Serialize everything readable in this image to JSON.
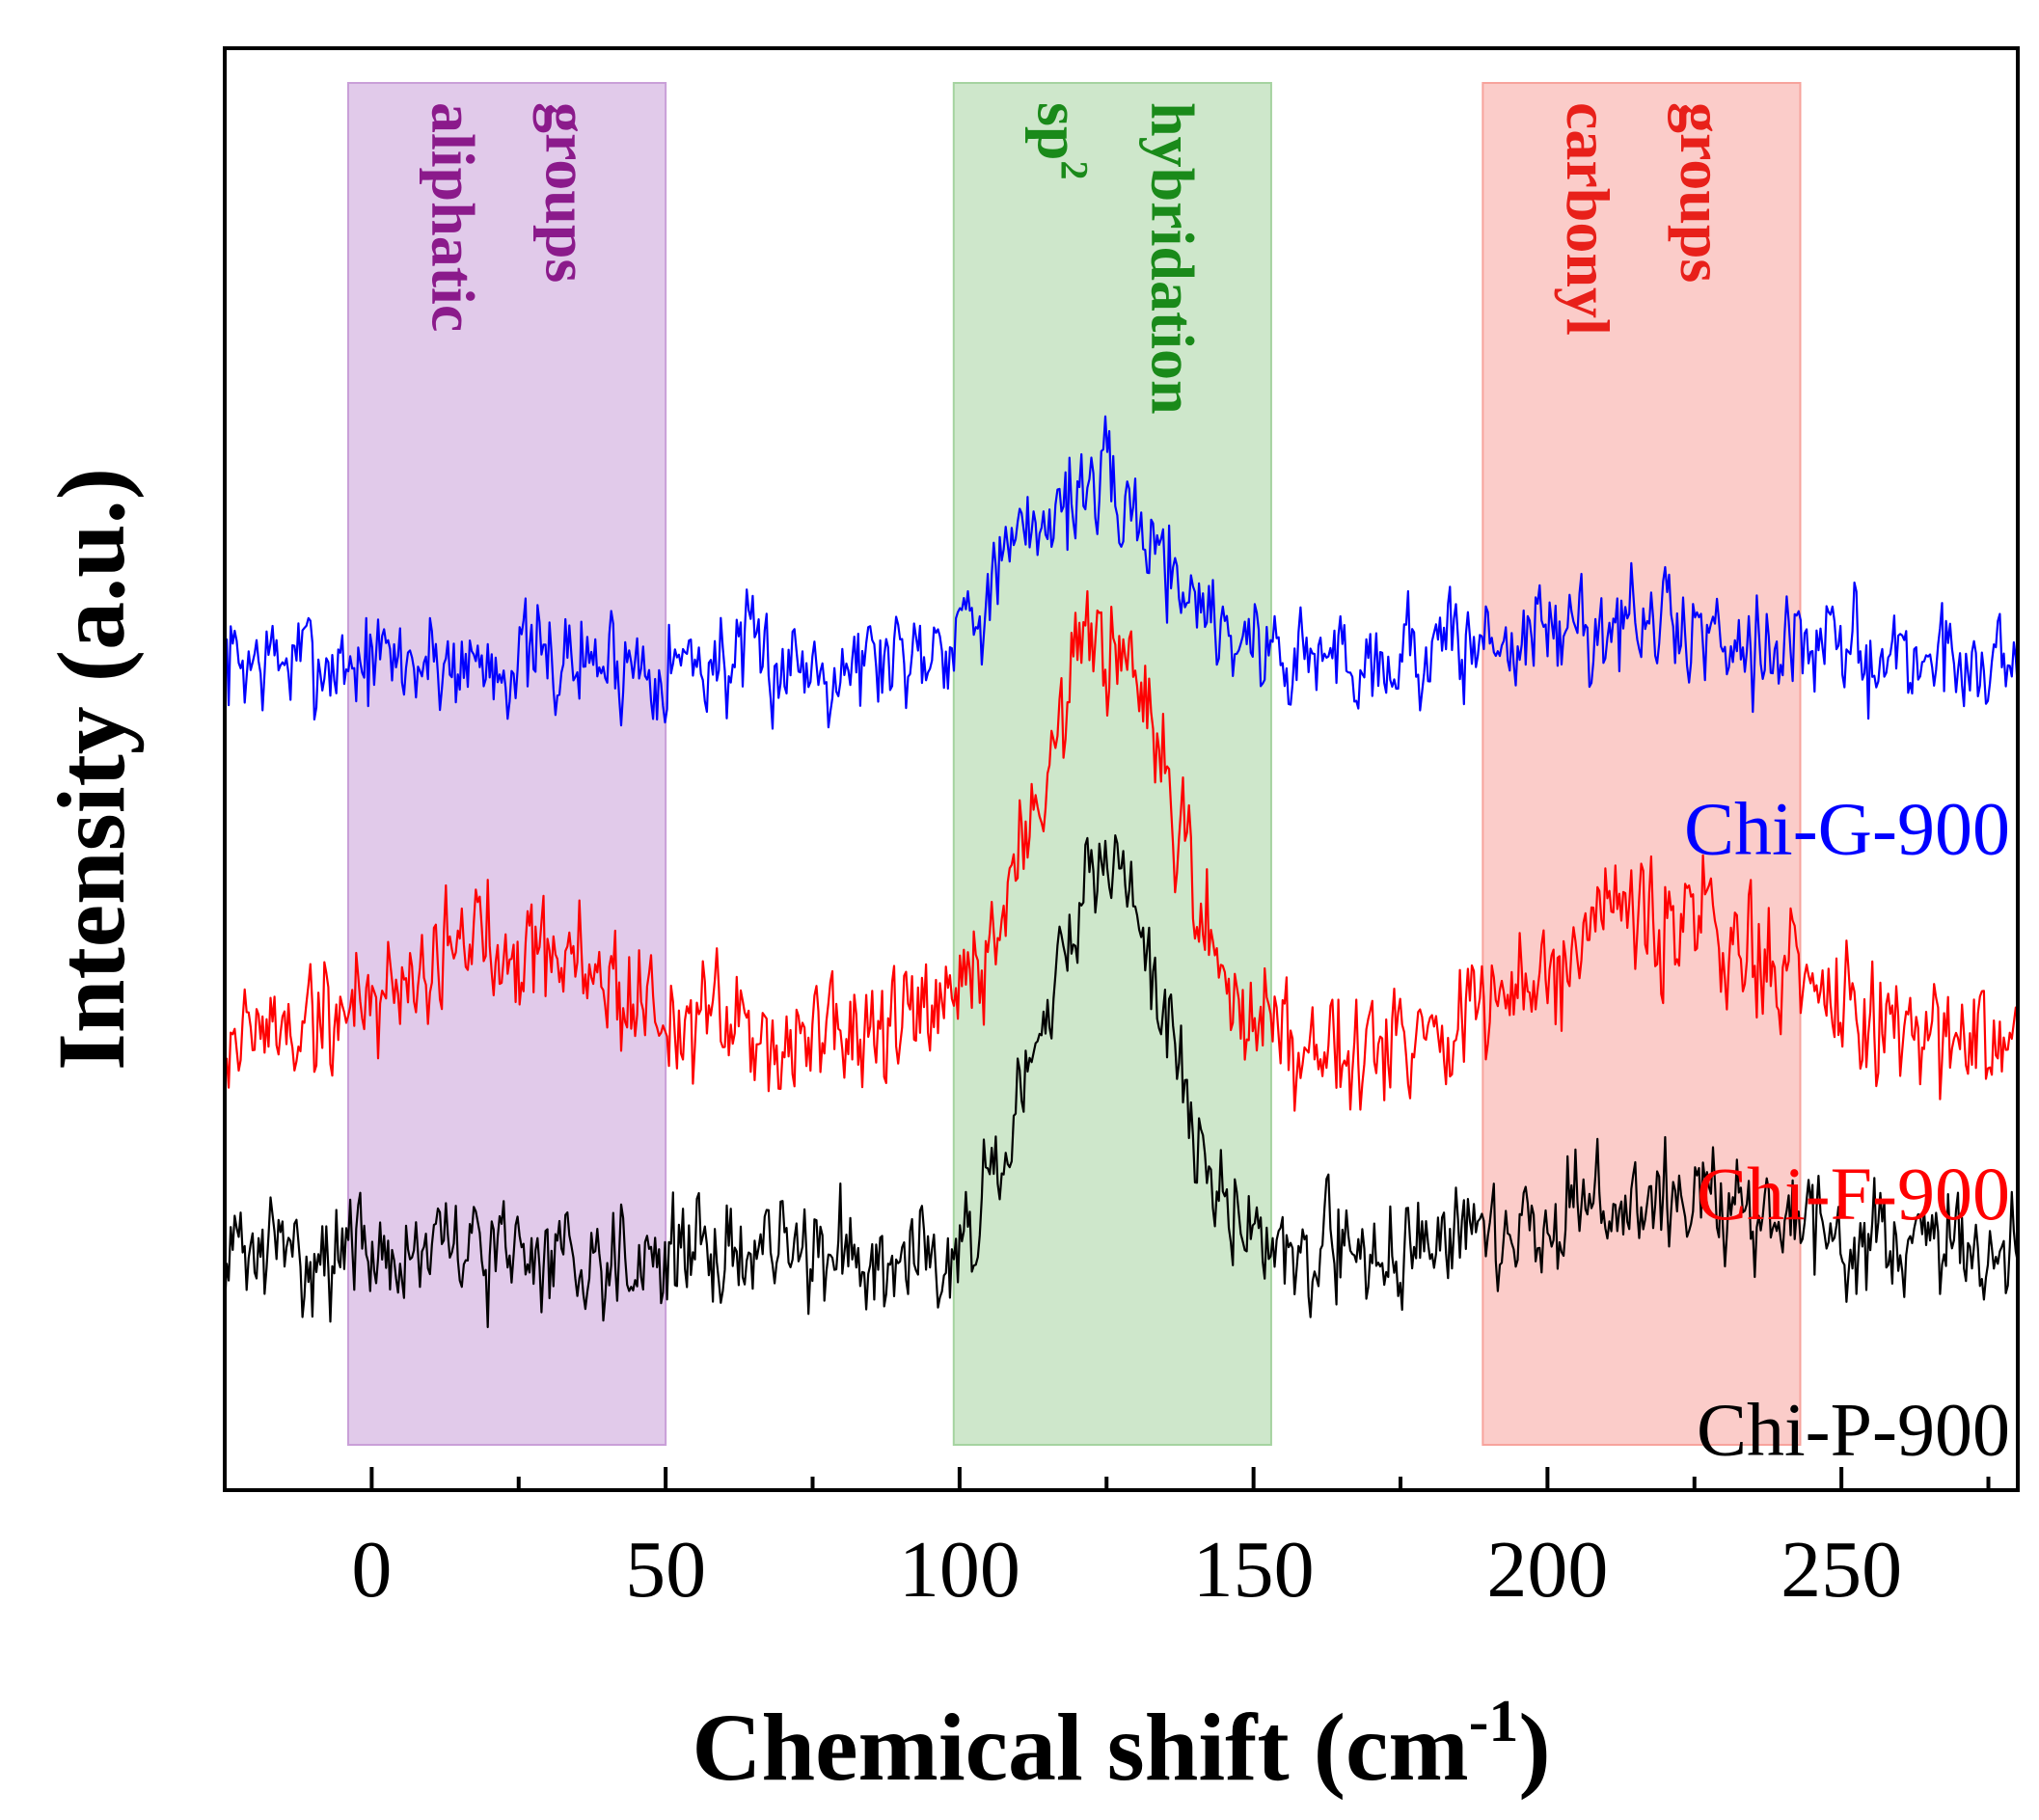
{
  "chart_data": {
    "type": "line",
    "title": "",
    "xlabel": "Chemical shift (cm",
    "xlabel_superscript": "-1",
    "xlabel_suffix": ")",
    "ylabel": "Intensity (a.u.)",
    "xlim": [
      -25,
      280
    ],
    "ylim": [
      0,
      1
    ],
    "x_ticks": [
      0,
      50,
      100,
      150,
      200,
      250
    ],
    "x_tick_labels": [
      "0",
      "50",
      "100",
      "150",
      "200",
      "250"
    ],
    "grid": false,
    "y_ticks_visible": false,
    "regions": [
      {
        "name": "aliphatic",
        "lines": [
          "aliphatic",
          "groups"
        ],
        "superscript": "",
        "x_start": -4,
        "x_end": 50,
        "color": "#c99fd8",
        "text_color": "#8b1a8b"
      },
      {
        "name": "sp2",
        "lines": [
          "sp",
          "hybridation"
        ],
        "superscript": "2",
        "x_start": 99,
        "x_end": 153,
        "color": "#a5d3a0",
        "text_color": "#1a8a1a"
      },
      {
        "name": "carbonyl",
        "lines": [
          "carbonyl",
          "groups"
        ],
        "superscript": "",
        "x_start": 189,
        "x_end": 243,
        "color": "#f7a39c",
        "text_color": "#e8201a"
      }
    ],
    "series": [
      {
        "name": "Chi-G-900",
        "color": "#0000ff",
        "baseline": 0.575,
        "noise": 0.022,
        "seed": 7,
        "peaks": [
          {
            "center": 122,
            "height": 0.12,
            "width": 13
          },
          {
            "center": 215,
            "height": 0.025,
            "width": 22
          }
        ]
      },
      {
        "name": "Chi-F-900",
        "color": "#ff0000",
        "baseline": 0.315,
        "noise": 0.026,
        "seed": 19,
        "peaks": [
          {
            "center": 124,
            "height": 0.27,
            "width": 11
          },
          {
            "center": 22,
            "height": 0.07,
            "width": 16
          },
          {
            "center": 220,
            "height": 0.08,
            "width": 17
          }
        ]
      },
      {
        "name": "Chi-P-900",
        "color": "#000000",
        "baseline": 0.165,
        "noise": 0.022,
        "seed": 31,
        "peaks": [
          {
            "center": 125,
            "height": 0.27,
            "width": 10
          },
          {
            "center": 220,
            "height": 0.035,
            "width": 20
          }
        ]
      }
    ]
  }
}
